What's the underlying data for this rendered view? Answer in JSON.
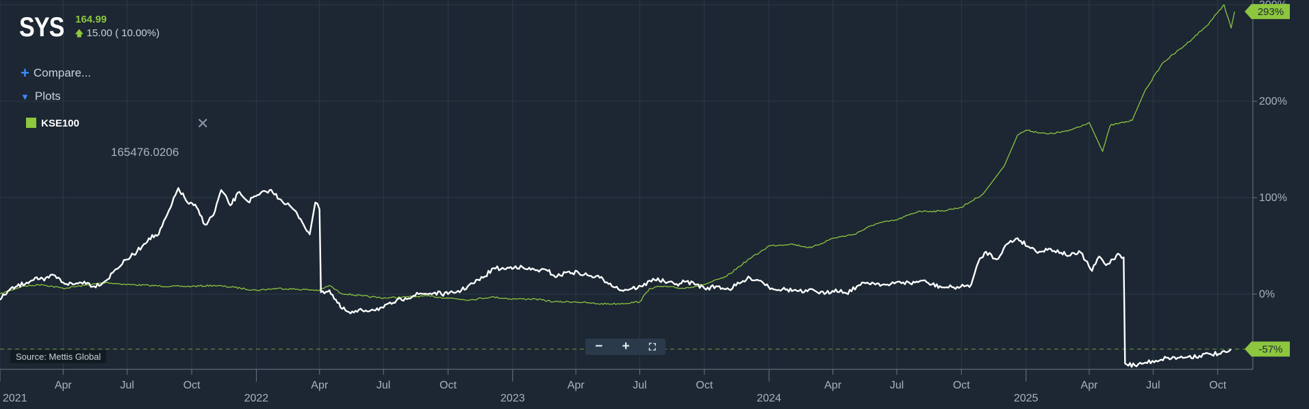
{
  "header": {
    "ticker": "SYS",
    "price": "164.99",
    "change": "15.00 ( 10.00%)"
  },
  "controls": {
    "compare_label": "Compare...",
    "plots_label": "Plots",
    "legend_item": "KSE100",
    "hover_value": "165476.0206",
    "source": "Source: Mettis Global",
    "icons": {
      "compare": "plus-icon",
      "plots": "triangle-down-icon",
      "close": "close-icon",
      "zoom_out": "minus-icon",
      "zoom_in": "plus-icon",
      "fullscreen": "fullscreen-icon"
    }
  },
  "chart_data": {
    "type": "line",
    "title": "",
    "xlabel": "",
    "ylabel": "",
    "y_unit": "% change",
    "ylim": [
      -78,
      305
    ],
    "yticks": [
      0,
      100,
      200,
      300
    ],
    "ytick_labels": [
      "0%",
      "100%",
      "200%",
      "300%"
    ],
    "xlim": [
      "2021-01-01",
      "2025-11-20"
    ],
    "x_ticks": [
      {
        "date": "2021-01-01",
        "label": "2021",
        "major": true
      },
      {
        "date": "2021-04-01",
        "label": "Apr",
        "major": false
      },
      {
        "date": "2021-07-01",
        "label": "Jul",
        "major": false
      },
      {
        "date": "2021-10-01",
        "label": "Oct",
        "major": false
      },
      {
        "date": "2022-01-01",
        "label": "2022",
        "major": true
      },
      {
        "date": "2022-04-01",
        "label": "Apr",
        "major": false
      },
      {
        "date": "2022-07-01",
        "label": "Jul",
        "major": false
      },
      {
        "date": "2022-10-01",
        "label": "Oct",
        "major": false
      },
      {
        "date": "2023-01-01",
        "label": "2023",
        "major": true
      },
      {
        "date": "2023-04-01",
        "label": "Apr",
        "major": false
      },
      {
        "date": "2023-07-01",
        "label": "Jul",
        "major": false
      },
      {
        "date": "2023-10-01",
        "label": "Oct",
        "major": false
      },
      {
        "date": "2024-01-01",
        "label": "2024",
        "major": true
      },
      {
        "date": "2024-04-01",
        "label": "Apr",
        "major": false
      },
      {
        "date": "2024-07-01",
        "label": "Jul",
        "major": false
      },
      {
        "date": "2024-10-01",
        "label": "Oct",
        "major": false
      },
      {
        "date": "2025-01-01",
        "label": "2025",
        "major": true
      },
      {
        "date": "2025-04-01",
        "label": "Apr",
        "major": false
      },
      {
        "date": "2025-07-01",
        "label": "Jul",
        "major": false
      },
      {
        "date": "2025-10-01",
        "label": "Oct",
        "major": false
      }
    ],
    "grid": true,
    "reference_line": {
      "value": -57,
      "style": "dashed",
      "color": "#8dc63f"
    },
    "series": [
      {
        "name": "SYS",
        "color": "#ffffff",
        "end_label": "-57%",
        "points": [
          [
            "2021-01-01",
            -6
          ],
          [
            "2021-01-12",
            3
          ],
          [
            "2021-01-25",
            8
          ],
          [
            "2021-02-08",
            12
          ],
          [
            "2021-02-20",
            17
          ],
          [
            "2021-03-05",
            14
          ],
          [
            "2021-03-18",
            20
          ],
          [
            "2021-04-01",
            12
          ],
          [
            "2021-04-15",
            10
          ],
          [
            "2021-05-01",
            13
          ],
          [
            "2021-05-15",
            8
          ],
          [
            "2021-06-01",
            14
          ],
          [
            "2021-06-15",
            26
          ],
          [
            "2021-07-01",
            36
          ],
          [
            "2021-07-15",
            44
          ],
          [
            "2021-08-01",
            58
          ],
          [
            "2021-08-15",
            62
          ],
          [
            "2021-09-01",
            90
          ],
          [
            "2021-09-12",
            110
          ],
          [
            "2021-09-25",
            95
          ],
          [
            "2021-10-08",
            90
          ],
          [
            "2021-10-20",
            72
          ],
          [
            "2021-11-01",
            82
          ],
          [
            "2021-11-12",
            108
          ],
          [
            "2021-11-25",
            92
          ],
          [
            "2021-12-08",
            106
          ],
          [
            "2021-12-20",
            96
          ],
          [
            "2022-01-05",
            103
          ],
          [
            "2022-01-20",
            108
          ],
          [
            "2022-02-05",
            98
          ],
          [
            "2022-02-20",
            90
          ],
          [
            "2022-03-05",
            78
          ],
          [
            "2022-03-18",
            62
          ],
          [
            "2022-03-26",
            95
          ],
          [
            "2022-04-01",
            88
          ],
          [
            "2022-04-03",
            2
          ],
          [
            "2022-04-15",
            4
          ],
          [
            "2022-05-01",
            -14
          ],
          [
            "2022-05-15",
            -20
          ],
          [
            "2022-06-01",
            -17
          ],
          [
            "2022-06-15",
            -16
          ],
          [
            "2022-07-01",
            -14
          ],
          [
            "2022-07-15",
            -9
          ],
          [
            "2022-08-01",
            -4
          ],
          [
            "2022-08-20",
            0
          ],
          [
            "2022-09-10",
            1
          ],
          [
            "2022-10-01",
            0
          ],
          [
            "2022-10-20",
            4
          ],
          [
            "2022-11-05",
            11
          ],
          [
            "2022-11-20",
            17
          ],
          [
            "2022-12-05",
            27
          ],
          [
            "2022-12-20",
            26
          ],
          [
            "2023-01-05",
            29
          ],
          [
            "2023-01-20",
            26
          ],
          [
            "2023-02-05",
            25
          ],
          [
            "2023-02-20",
            24
          ],
          [
            "2023-03-05",
            18
          ],
          [
            "2023-03-20",
            23
          ],
          [
            "2023-04-05",
            22
          ],
          [
            "2023-04-20",
            19
          ],
          [
            "2023-05-05",
            17
          ],
          [
            "2023-05-20",
            11
          ],
          [
            "2023-06-05",
            4
          ],
          [
            "2023-06-20",
            6
          ],
          [
            "2023-07-05",
            8
          ],
          [
            "2023-07-20",
            16
          ],
          [
            "2023-08-05",
            13
          ],
          [
            "2023-08-20",
            10
          ],
          [
            "2023-09-05",
            13
          ],
          [
            "2023-09-20",
            10
          ],
          [
            "2023-10-01",
            6
          ],
          [
            "2023-10-20",
            8
          ],
          [
            "2023-11-05",
            5
          ],
          [
            "2023-11-20",
            11
          ],
          [
            "2023-12-05",
            17
          ],
          [
            "2023-12-20",
            14
          ],
          [
            "2024-01-05",
            6
          ],
          [
            "2024-01-20",
            5
          ],
          [
            "2024-02-05",
            4
          ],
          [
            "2024-02-20",
            2
          ],
          [
            "2024-03-05",
            4
          ],
          [
            "2024-03-20",
            0
          ],
          [
            "2024-04-05",
            5
          ],
          [
            "2024-04-20",
            1
          ],
          [
            "2024-05-05",
            8
          ],
          [
            "2024-05-20",
            12
          ],
          [
            "2024-06-05",
            11
          ],
          [
            "2024-06-20",
            9
          ],
          [
            "2024-07-05",
            13
          ],
          [
            "2024-07-20",
            11
          ],
          [
            "2024-08-05",
            14
          ],
          [
            "2024-08-20",
            10
          ],
          [
            "2024-09-05",
            7
          ],
          [
            "2024-09-20",
            7
          ],
          [
            "2024-10-05",
            8
          ],
          [
            "2024-10-15",
            10
          ],
          [
            "2024-10-25",
            33
          ],
          [
            "2024-11-05",
            44
          ],
          [
            "2024-11-20",
            36
          ],
          [
            "2024-12-05",
            52
          ],
          [
            "2024-12-20",
            58
          ],
          [
            "2025-01-05",
            49
          ],
          [
            "2025-01-20",
            44
          ],
          [
            "2025-02-05",
            47
          ],
          [
            "2025-02-20",
            43
          ],
          [
            "2025-03-05",
            40
          ],
          [
            "2025-03-20",
            43
          ],
          [
            "2025-04-05",
            24
          ],
          [
            "2025-04-15",
            39
          ],
          [
            "2025-04-25",
            30
          ],
          [
            "2025-05-05",
            36
          ],
          [
            "2025-05-12",
            42
          ],
          [
            "2025-05-20",
            38
          ],
          [
            "2025-05-22",
            -72
          ],
          [
            "2025-06-05",
            -74
          ],
          [
            "2025-06-20",
            -71
          ],
          [
            "2025-07-05",
            -69
          ],
          [
            "2025-07-20",
            -66
          ],
          [
            "2025-08-05",
            -66
          ],
          [
            "2025-08-20",
            -65
          ],
          [
            "2025-09-05",
            -64
          ],
          [
            "2025-09-20",
            -62
          ],
          [
            "2025-10-05",
            -62
          ],
          [
            "2025-10-15",
            -60
          ],
          [
            "2025-10-20",
            -57
          ]
        ]
      },
      {
        "name": "KSE100",
        "color": "#8dc63f",
        "end_label": "293%",
        "points": [
          [
            "2021-01-01",
            0
          ],
          [
            "2021-02-01",
            8
          ],
          [
            "2021-03-01",
            10
          ],
          [
            "2021-04-01",
            6
          ],
          [
            "2021-05-01",
            9
          ],
          [
            "2021-06-01",
            12
          ],
          [
            "2021-07-01",
            10
          ],
          [
            "2021-08-01",
            9
          ],
          [
            "2021-09-01",
            8
          ],
          [
            "2021-10-01",
            8
          ],
          [
            "2021-11-01",
            9
          ],
          [
            "2021-12-01",
            7
          ],
          [
            "2022-01-01",
            4
          ],
          [
            "2022-02-01",
            6
          ],
          [
            "2022-03-01",
            5
          ],
          [
            "2022-04-01",
            4
          ],
          [
            "2022-04-15",
            9
          ],
          [
            "2022-05-01",
            1
          ],
          [
            "2022-06-01",
            -2
          ],
          [
            "2022-07-01",
            -4
          ],
          [
            "2022-08-01",
            -3
          ],
          [
            "2022-09-01",
            -2
          ],
          [
            "2022-10-01",
            -4
          ],
          [
            "2022-11-01",
            -6
          ],
          [
            "2022-12-01",
            -3
          ],
          [
            "2023-01-01",
            -5
          ],
          [
            "2023-02-01",
            -5
          ],
          [
            "2023-03-01",
            -8
          ],
          [
            "2023-04-01",
            -8
          ],
          [
            "2023-05-01",
            -10
          ],
          [
            "2023-06-01",
            -10
          ],
          [
            "2023-07-01",
            -8
          ],
          [
            "2023-07-15",
            6
          ],
          [
            "2023-08-01",
            8
          ],
          [
            "2023-09-01",
            6
          ],
          [
            "2023-10-01",
            10
          ],
          [
            "2023-11-01",
            18
          ],
          [
            "2023-12-01",
            35
          ],
          [
            "2023-12-20",
            44
          ],
          [
            "2024-01-01",
            50
          ],
          [
            "2024-02-01",
            52
          ],
          [
            "2024-03-01",
            48
          ],
          [
            "2024-04-01",
            58
          ],
          [
            "2024-05-01",
            62
          ],
          [
            "2024-06-01",
            73
          ],
          [
            "2024-07-01",
            77
          ],
          [
            "2024-08-01",
            86
          ],
          [
            "2024-09-01",
            86
          ],
          [
            "2024-10-01",
            90
          ],
          [
            "2024-11-01",
            104
          ],
          [
            "2024-12-01",
            133
          ],
          [
            "2024-12-20",
            165
          ],
          [
            "2025-01-01",
            170
          ],
          [
            "2025-02-01",
            166
          ],
          [
            "2025-03-01",
            169
          ],
          [
            "2025-04-01",
            178
          ],
          [
            "2025-04-20",
            148
          ],
          [
            "2025-05-01",
            175
          ],
          [
            "2025-06-01",
            180
          ],
          [
            "2025-06-20",
            212
          ],
          [
            "2025-07-15",
            240
          ],
          [
            "2025-08-15",
            258
          ],
          [
            "2025-09-15",
            278
          ],
          [
            "2025-10-01",
            292
          ],
          [
            "2025-10-10",
            300
          ],
          [
            "2025-10-20",
            276
          ],
          [
            "2025-10-25",
            293
          ]
        ]
      }
    ]
  }
}
